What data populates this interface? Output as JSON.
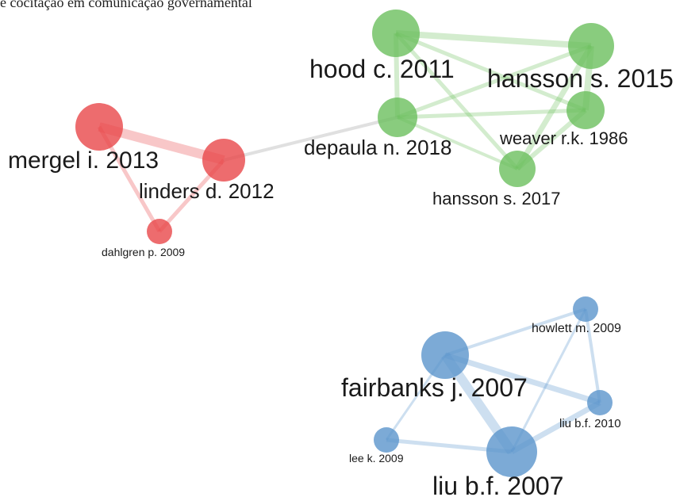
{
  "title": "e cocitação em comunicação governamental",
  "nodes": [
    {
      "label": "mergel i. 2013"
    },
    {
      "label": "linders d. 2012"
    },
    {
      "label": "dahlgren p. 2009"
    },
    {
      "label": "hood c. 2011"
    },
    {
      "label": "hansson s. 2015"
    },
    {
      "label": "depaula n. 2018"
    },
    {
      "label": "weaver r.k. 1986"
    },
    {
      "label": "hansson s. 2017"
    },
    {
      "label": "fairbanks j. 2007"
    },
    {
      "label": "howlett m. 2009"
    },
    {
      "label": "liu b.f. 2010"
    },
    {
      "label": "lee k. 2009"
    },
    {
      "label": "liu b.f. 2007"
    }
  ]
}
